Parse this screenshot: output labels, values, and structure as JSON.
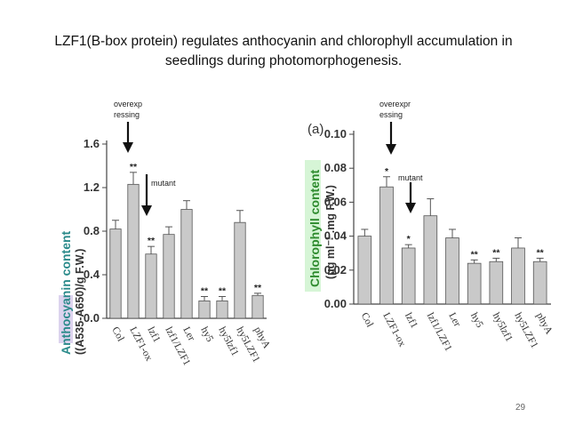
{
  "slide": {
    "title_line1": "LZF1(B-box protein) regulates anthocyanin and  chlorophyll accumulation in",
    "title_line2": "seedlings during photomorphogenesis.",
    "page_number": "29"
  },
  "annotations": {
    "left_over_l1": "overexp",
    "left_over_l2": "ressing",
    "left_mutant": "mutant",
    "right_over_l1": "overexpr",
    "right_over_l2": "essing",
    "right_mutant": "mutant"
  },
  "chart_data": [
    {
      "type": "bar",
      "ylabel_line1": "Anthocyanin content",
      "ylabel_line2": "((A535-A650)/g F.W.)",
      "ylabel_highlight": "#d9cfee",
      "ylabel_color": "#2a8a8a",
      "ylim": [
        0,
        1.6
      ],
      "yticks": [
        "0.0",
        "0.4",
        "0.8",
        "1.2",
        "1.6"
      ],
      "categories": [
        "Col",
        "LZF1-ox",
        "lzf1",
        "lzf1/LZF1",
        "Ler",
        "hy5",
        "hy5lzf1",
        "hy5LZF1",
        "phyA"
      ],
      "values": [
        0.82,
        1.23,
        0.59,
        0.77,
        1.0,
        0.16,
        0.16,
        0.88,
        0.21
      ],
      "errors": [
        0.08,
        0.11,
        0.07,
        0.07,
        0.08,
        0.04,
        0.04,
        0.11,
        0.02
      ],
      "significance": [
        "",
        "**",
        "**",
        "",
        "",
        "**",
        "**",
        "",
        "**"
      ],
      "bar_color": "#c9c9c9"
    },
    {
      "type": "bar",
      "panel_letter": "(a)",
      "ylabel_line1": "Chlorophyll content",
      "ylabel_line2": "(μg ml⁻¹ .mg F.W.)",
      "ylabel_highlight": "#d6f5d6",
      "ylabel_color": "#2e8b2e",
      "ylim": [
        0,
        0.1
      ],
      "yticks": [
        "0.00",
        "0.02",
        "0.04",
        "0.06",
        "0.08",
        "0.10"
      ],
      "categories": [
        "Col",
        "LZF1-ox",
        "lzf1",
        "lzf1/LZF1",
        "Ler",
        "hy5",
        "hy5lzf1",
        "hy5LZF1",
        "phyA"
      ],
      "values": [
        0.04,
        0.069,
        0.033,
        0.052,
        0.039,
        0.024,
        0.025,
        0.033,
        0.025
      ],
      "errors": [
        0.004,
        0.006,
        0.002,
        0.01,
        0.005,
        0.002,
        0.002,
        0.006,
        0.002
      ],
      "significance": [
        "",
        "*",
        "*",
        "",
        "",
        "**",
        "**",
        "",
        "**"
      ],
      "bar_color": "#c9c9c9"
    }
  ]
}
